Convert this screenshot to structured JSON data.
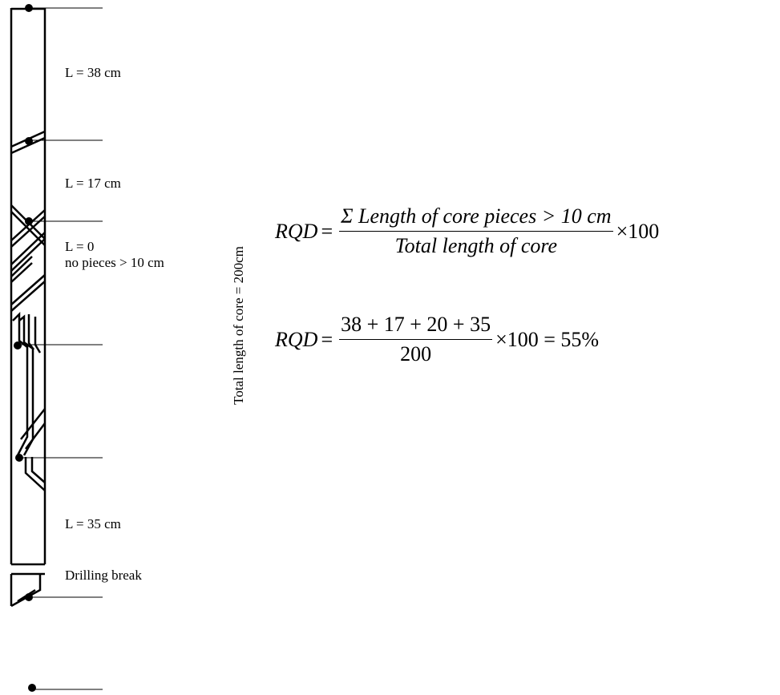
{
  "labels": {
    "piece1": "L = 38 cm",
    "piece2": "L = 17 cm",
    "piece3_line1": "L = 0",
    "piece3_line2": "no pieces > 10 cm",
    "piece4": "L = 35 cm",
    "drilling_break": "Drilling break",
    "total_length": "Total length of core = 200cm"
  },
  "equation1": {
    "lhs": "RQD",
    "eq": "=",
    "numerator": "Σ Length of  core  pieces > 10 cm",
    "denominator": "Total  length of  core",
    "times": "×100"
  },
  "equation2": {
    "lhs": "RQD",
    "eq": "=",
    "numerator": "38 + 17 + 20 + 35",
    "denominator": "200",
    "result": "×100 = 55%"
  }
}
